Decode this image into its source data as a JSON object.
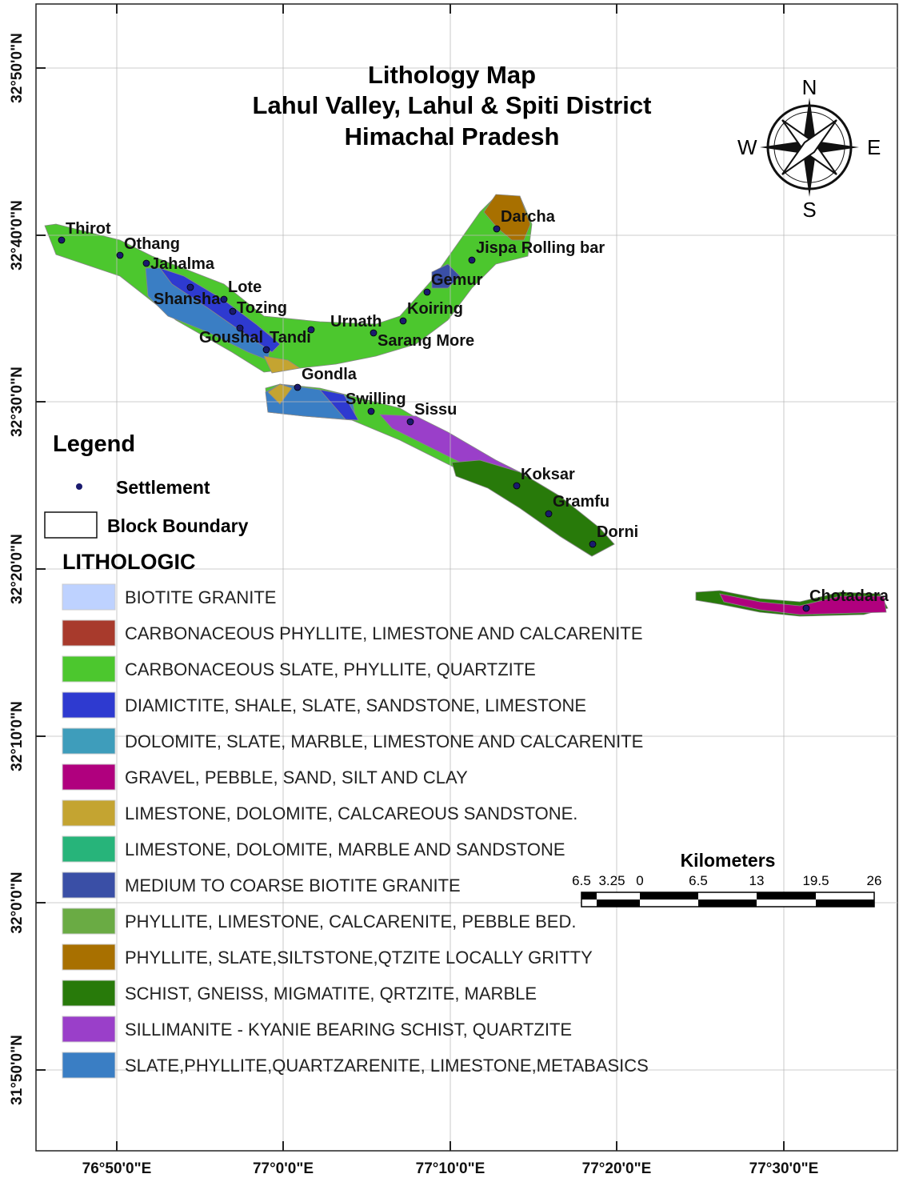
{
  "title": [
    "Lithology Map",
    "Lahul Valley, Lahul & Spiti District",
    "Himachal Pradesh"
  ],
  "compass": {
    "n": "N",
    "e": "E",
    "s": "S",
    "w": "W"
  },
  "settlements": [
    "Thirot",
    "Othang",
    "Jahalma",
    "Lote",
    "Shansha",
    "Tozing",
    "Goushal",
    "Tandi",
    "Urnath",
    "Sarang More",
    "Koiring",
    "Gemur",
    "Jispa Rolling bar",
    "Darcha",
    "Gondla",
    "Swilling",
    "Sissu",
    "Koksar",
    "Gramfu",
    "Dorni",
    "Chotadara"
  ],
  "legend": {
    "title": "Legend",
    "settlement": "Settlement",
    "block_boundary": "Block Boundary",
    "lithologic_title": "LITHOLOGIC",
    "classes": [
      {
        "name": "BIOTITE GRANITE",
        "color": "#bed2ff"
      },
      {
        "name": "CARBONACEOUS PHYLLITE, LIMESTONE AND CALCARENITE",
        "color": "#a83a2c"
      },
      {
        "name": "CARBONACEOUS SLATE, PHYLLITE, QUARTZITE",
        "color": "#4cc72e"
      },
      {
        "name": "DIAMICTITE, SHALE, SLATE, SANDSTONE, LIMESTONE",
        "color": "#2e3ad0"
      },
      {
        "name": "DOLOMITE, SLATE, MARBLE, LIMESTONE AND CALCARENITE",
        "color": "#3e9dbb"
      },
      {
        "name": "GRAVEL, PEBBLE, SAND, SILT AND CLAY",
        "color": "#b0007e"
      },
      {
        "name": "LIMESTONE, DOLOMITE, CALCAREOUS SANDSTONE.",
        "color": "#c4a431"
      },
      {
        "name": "LIMESTONE, DOLOMITE, MARBLE AND SANDSTONE",
        "color": "#27b47a"
      },
      {
        "name": "MEDIUM TO COARSE BIOTITE GRANITE",
        "color": "#3a4fa6"
      },
      {
        "name": "PHYLLITE, LIMESTONE, CALCARENITE, PEBBLE BED.",
        "color": "#6aab44"
      },
      {
        "name": "PHYLLITE, SLATE,SILTSTONE,QTZITE LOCALLY GRITTY",
        "color": "#a87000"
      },
      {
        "name": "SCHIST, GNEISS, MIGMATITE, QRTZITE, MARBLE",
        "color": "#287a0a"
      },
      {
        "name": "SILLIMANITE - KYANIE BEARING SCHIST, QUARTZITE",
        "color": "#9a3fc9"
      },
      {
        "name": "SLATE,PHYLLITE,QUARTZARENITE, LIMESTONE,METABASICS",
        "color": "#3a7ec4"
      }
    ]
  },
  "scale": {
    "title": "Kilometers",
    "labels": [
      "6.5",
      "3.25",
      "0",
      "6.5",
      "13",
      "19.5",
      "26"
    ]
  },
  "graticule": {
    "latitudes": [
      "32°50'0\"N",
      "32°40'0\"N",
      "32°30'0\"N",
      "32°20'0\"N",
      "32°10'0\"N",
      "32°0'0\"N",
      "31°50'0\"N"
    ],
    "longitudes": [
      "76°50'0\"E",
      "77°0'0\"E",
      "77°10'0\"E",
      "77°20'0\"E",
      "77°30'0\"E"
    ]
  }
}
